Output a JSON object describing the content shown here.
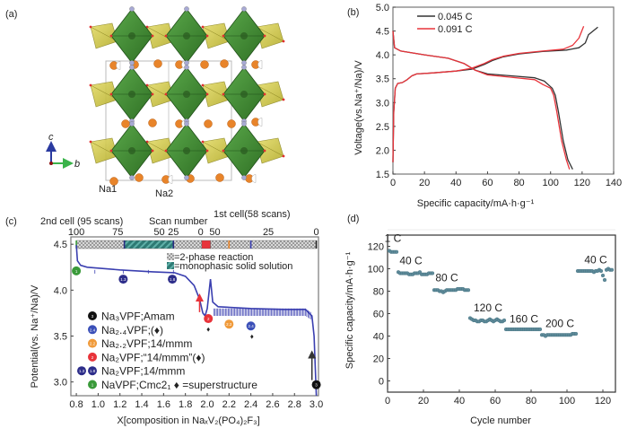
{
  "panels": {
    "a": {
      "label": "(a)",
      "axis_c": "c",
      "axis_b": "b",
      "site_labels": [
        "Na1",
        "Na2"
      ],
      "colors": {
        "vo_octahedra": "#3f8f2f",
        "po_tetrahedra": "#c9c23a",
        "na": "#e8842a",
        "f": "#a7a9d4",
        "o": "#e03030"
      }
    },
    "b": {
      "label": "(b)"
    },
    "c": {
      "label": "(c)"
    },
    "d": {
      "label": "(d)"
    }
  },
  "chart_data": [
    {
      "id": "b",
      "type": "line",
      "title": "",
      "xlabel": "Specific capacity/mA·h·g⁻¹",
      "ylabel": "Voltage(vs.Na⁺/Na)/V",
      "xlim": [
        0,
        140
      ],
      "ylim": [
        1.5,
        5.0
      ],
      "xticks": [
        0,
        20,
        40,
        60,
        80,
        100,
        120,
        140
      ],
      "yticks": [
        1.5,
        2.0,
        2.5,
        3.0,
        3.5,
        4.0,
        4.5,
        5.0
      ],
      "legend_position": "top-left",
      "series": [
        {
          "name": "0.045 C",
          "color": "#333333",
          "charge": [
            [
              0,
              1.75
            ],
            [
              0.5,
              2.8
            ],
            [
              1.5,
              3.3
            ],
            [
              3,
              3.4
            ],
            [
              6,
              3.42
            ],
            [
              9,
              3.48
            ],
            [
              12,
              3.56
            ],
            [
              15,
              3.6
            ],
            [
              25,
              3.62
            ],
            [
              40,
              3.66
            ],
            [
              50,
              3.7
            ],
            [
              58,
              3.8
            ],
            [
              63,
              3.88
            ],
            [
              70,
              3.96
            ],
            [
              80,
              4.02
            ],
            [
              95,
              4.07
            ],
            [
              110,
              4.1
            ],
            [
              118,
              4.15
            ],
            [
              122,
              4.25
            ],
            [
              124,
              4.42
            ],
            [
              130,
              4.58
            ]
          ],
          "discharge": [
            [
              0,
              4.5
            ],
            [
              1,
              4.15
            ],
            [
              5,
              4.08
            ],
            [
              20,
              4.0
            ],
            [
              35,
              3.93
            ],
            [
              45,
              3.82
            ],
            [
              52,
              3.68
            ],
            [
              60,
              3.6
            ],
            [
              75,
              3.56
            ],
            [
              90,
              3.52
            ],
            [
              96,
              3.45
            ],
            [
              101,
              3.3
            ],
            [
              103,
              3.15
            ],
            [
              105,
              2.8
            ],
            [
              108,
              2.2
            ],
            [
              111,
              1.8
            ],
            [
              114,
              1.6
            ]
          ]
        },
        {
          "name": "0.091 C",
          "color": "#e8333a",
          "charge": [
            [
              0,
              1.75
            ],
            [
              0.5,
              2.8
            ],
            [
              1.5,
              3.3
            ],
            [
              3,
              3.4
            ],
            [
              6,
              3.42
            ],
            [
              9,
              3.48
            ],
            [
              12,
              3.56
            ],
            [
              15,
              3.6
            ],
            [
              25,
              3.62
            ],
            [
              40,
              3.66
            ],
            [
              50,
              3.72
            ],
            [
              58,
              3.82
            ],
            [
              63,
              3.9
            ],
            [
              70,
              3.97
            ],
            [
              80,
              4.03
            ],
            [
              95,
              4.08
            ],
            [
              108,
              4.12
            ],
            [
              114,
              4.2
            ],
            [
              118,
              4.35
            ],
            [
              121,
              4.6
            ]
          ],
          "discharge": [
            [
              0,
              4.5
            ],
            [
              1,
              4.15
            ],
            [
              5,
              4.08
            ],
            [
              20,
              4.0
            ],
            [
              35,
              3.93
            ],
            [
              45,
              3.82
            ],
            [
              52,
              3.68
            ],
            [
              60,
              3.58
            ],
            [
              75,
              3.53
            ],
            [
              90,
              3.48
            ],
            [
              95,
              3.38
            ],
            [
              100,
              3.3
            ],
            [
              102,
              3.15
            ],
            [
              104,
              2.8
            ],
            [
              107,
              2.2
            ],
            [
              110,
              1.8
            ],
            [
              112,
              1.6
            ]
          ]
        }
      ]
    },
    {
      "id": "c",
      "type": "line",
      "xlabel": "X[composition in NaₓV₂(PO₄)₂F₃]",
      "ylabel": "Potential(vs. Na⁺/Na)/V",
      "xlim": [
        0.75,
        3.02
      ],
      "ylim": [
        2.85,
        4.58
      ],
      "xticks": [
        0.8,
        1.0,
        1.2,
        1.4,
        1.6,
        1.8,
        2.0,
        2.2,
        2.4,
        2.6,
        2.8,
        3.0
      ],
      "yticks": [
        3.0,
        3.5,
        4.0,
        4.5
      ],
      "top_axis": {
        "title": "Scan number",
        "left_title": "2nd cell  (95 scans)",
        "right_title": "1st cell(58 scans)",
        "left_ticks": [
          {
            "x": 0.8,
            "label": "100"
          },
          {
            "x": 1.18,
            "label": "75"
          },
          {
            "x": 1.56,
            "label": "50"
          },
          {
            "x": 1.69,
            "label": "25"
          },
          {
            "x": 1.94,
            "label": "0"
          }
        ],
        "right_ticks": [
          {
            "x": 2.07,
            "label": "50"
          },
          {
            "x": 2.56,
            "label": "25"
          },
          {
            "x": 3.0,
            "label": "0"
          }
        ]
      },
      "series": [
        {
          "name": "Potential profile",
          "color": "#3a3fb0",
          "points": [
            [
              0.8,
              4.49
            ],
            [
              0.81,
              4.32
            ],
            [
              0.84,
              4.27
            ],
            [
              0.9,
              4.25
            ],
            [
              1.2,
              4.22
            ],
            [
              1.5,
              4.2
            ],
            [
              1.7,
              4.19
            ],
            [
              1.8,
              4.15
            ],
            [
              1.88,
              4.05
            ],
            [
              1.93,
              3.9
            ],
            [
              1.96,
              3.75
            ],
            [
              1.98,
              3.72
            ],
            [
              2.0,
              3.8
            ],
            [
              2.03,
              4.12
            ],
            [
              2.05,
              3.87
            ],
            [
              2.1,
              3.82
            ],
            [
              2.4,
              3.8
            ],
            [
              2.7,
              3.79
            ],
            [
              2.9,
              3.79
            ],
            [
              2.96,
              3.72
            ],
            [
              2.98,
              3.5
            ],
            [
              3.0,
              2.85
            ]
          ]
        }
      ],
      "phase_bar": [
        {
          "from": 0.8,
          "to": 1.24,
          "phase": "2-phase reaction"
        },
        {
          "from": 1.24,
          "to": 1.69,
          "phase": "monophasic solid solution"
        },
        {
          "from": 1.69,
          "to": 1.95,
          "phase": "2-phase reaction"
        },
        {
          "from": 1.95,
          "to": 2.03,
          "phase": "marker",
          "color": "#e8333a"
        },
        {
          "from": 2.03,
          "to": 3.0,
          "phase": "2-phase reaction"
        }
      ],
      "phase_bar_ticks": [
        {
          "x": 0.8,
          "color": "#3a9a3a"
        },
        {
          "x": 1.24,
          "color": "#2a2a80"
        },
        {
          "x": 1.69,
          "color": "#2a2a80"
        },
        {
          "x": 2.2,
          "color": "#e8842a"
        },
        {
          "x": 2.4,
          "color": "#3a3fb0"
        },
        {
          "x": 3.0,
          "color": "#222222"
        }
      ],
      "phase_legend": [
        {
          "pattern": "checker",
          "label": "=2-phase reaction"
        },
        {
          "pattern": "hatch",
          "label": "=monophasic solid solution"
        }
      ],
      "points_markers": [
        {
          "x": 0.8,
          "y": 4.21,
          "label": "1",
          "color": "#3a9a3a"
        },
        {
          "x": 1.23,
          "y": 4.12,
          "label": "1.3",
          "color": "#2d2d8a"
        },
        {
          "x": 1.68,
          "y": 4.12,
          "label": "1.8",
          "color": "#2d2d8a"
        },
        {
          "x": 2.01,
          "y": 3.69,
          "label": "2",
          "color": "#e8333a"
        },
        {
          "x": 2.2,
          "y": 3.63,
          "label": "2.2",
          "color": "#f09a3a"
        },
        {
          "x": 2.4,
          "y": 3.61,
          "label": "2.4",
          "color": "#3a4fb8"
        },
        {
          "x": 3.0,
          "y": 2.97,
          "label": "3",
          "color": "#111111"
        }
      ],
      "superstructure_marks": [
        {
          "x": 2.01,
          "y": 3.58
        },
        {
          "x": 2.41,
          "y": 3.5
        }
      ],
      "arrows": [
        {
          "x": 1.93,
          "y_from": 3.76,
          "y_to": 3.92,
          "color": "#e8333a"
        },
        {
          "x": 2.96,
          "y_from": 3.02,
          "y_to": 3.3,
          "color": "#333333"
        }
      ],
      "legend": [
        {
          "icons": [
            {
              "label": "3",
              "color": "#111111"
            }
          ],
          "text": "Na₃VPF;Amam"
        },
        {
          "icons": [
            {
              "label": "2.4",
              "color": "#3a4fb8"
            }
          ],
          "text": "Na₂.₄VPF;(♦)"
        },
        {
          "icons": [
            {
              "label": "2.2",
              "color": "#f09a3a"
            }
          ],
          "text": "Na₂.₂VPF;14/mmm"
        },
        {
          "icons": [
            {
              "label": "2",
              "color": "#e8333a"
            }
          ],
          "text": "Na₂VPF;“14/mmm”(♦)"
        },
        {
          "icons": [
            {
              "label": "1.3",
              "color": "#2d2d8a"
            },
            {
              "label": "1.8",
              "color": "#2d2d8a"
            }
          ],
          "text": "Na₂VPF;14/mmm"
        },
        {
          "icons": [
            {
              "label": "1",
              "color": "#3a9a3a"
            }
          ],
          "text": "NaVPF;Cmc2₁ ♦ =superstructure"
        }
      ]
    },
    {
      "id": "d",
      "type": "scatter",
      "xlabel": "Cycle number",
      "ylabel": "Specific capacity/mA·h·g⁻¹",
      "xlim": [
        0,
        127
      ],
      "ylim": [
        -10,
        130
      ],
      "xticks": [
        0,
        20,
        40,
        60,
        80,
        100,
        120
      ],
      "yticks": [
        0,
        20,
        40,
        60,
        80,
        100,
        120
      ],
      "color": "#5f8b9a",
      "segments": [
        {
          "rate": "1 C",
          "from": 1,
          "to": 5,
          "values": [
            116,
            115,
            115,
            115,
            115
          ],
          "label_at": [
            3,
            124
          ]
        },
        {
          "rate": "40 C",
          "from": 6,
          "to": 25,
          "values": [
            97,
            96,
            96,
            96,
            96,
            96,
            95,
            95,
            95,
            96,
            96,
            96,
            97,
            95,
            95,
            95,
            95,
            96,
            96,
            96
          ],
          "label_at": [
            13,
            104
          ]
        },
        {
          "rate": "80 C",
          "from": 26,
          "to": 45,
          "values": [
            81,
            81,
            81,
            80,
            80,
            79,
            80,
            81,
            81,
            81,
            81,
            81,
            81,
            82,
            82,
            82,
            82,
            81,
            81,
            81
          ],
          "label_at": [
            33,
            89
          ]
        },
        {
          "rate": "120 C",
          "from": 46,
          "to": 65,
          "values": [
            56,
            55,
            54,
            54,
            53,
            53,
            54,
            54,
            53,
            53,
            54,
            55,
            54,
            53,
            54,
            55,
            54,
            53,
            53,
            54
          ],
          "label_at": [
            56,
            62
          ]
        },
        {
          "rate": "160 C",
          "from": 66,
          "to": 85,
          "values": [
            46,
            46,
            46,
            46,
            46,
            46,
            46,
            46,
            46,
            46,
            46,
            46,
            46,
            46,
            46,
            46,
            46,
            46,
            46,
            46
          ],
          "label_at": [
            76,
            52
          ]
        },
        {
          "rate": "200 C",
          "from": 86,
          "to": 105,
          "values": [
            41,
            41,
            40,
            41,
            41,
            41,
            41,
            41,
            41,
            41,
            41,
            41,
            41,
            41,
            41,
            41,
            41,
            42,
            42,
            42
          ],
          "label_at": [
            96,
            48
          ]
        },
        {
          "rate": "40 C",
          "from": 106,
          "to": 125,
          "values": [
            98,
            98,
            98,
            98,
            98,
            98,
            98,
            98,
            98,
            97,
            98,
            98,
            99,
            98,
            94,
            90,
            99,
            100,
            99,
            99
          ],
          "label_at": [
            116,
            105
          ]
        }
      ]
    }
  ]
}
